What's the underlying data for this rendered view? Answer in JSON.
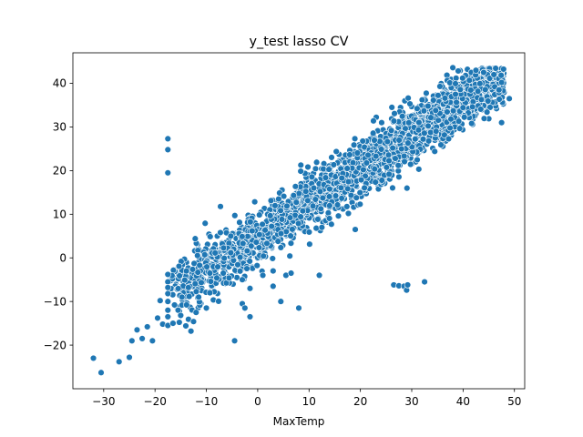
{
  "chart_data": {
    "type": "scatter",
    "title": "y_test lasso CV",
    "xlabel": "MaxTemp",
    "ylabel": "",
    "xlim": [
      -36,
      52
    ],
    "ylim": [
      -30,
      47
    ],
    "x_ticks": [
      -30,
      -20,
      -10,
      0,
      10,
      20,
      30,
      40,
      50
    ],
    "y_ticks": [
      -20,
      -10,
      0,
      10,
      20,
      30,
      40
    ],
    "x_tick_labels": [
      "−30",
      "−20",
      "−10",
      "0",
      "10",
      "20",
      "30",
      "40",
      "50"
    ],
    "y_tick_labels": [
      "−20",
      "−10",
      "0",
      "10",
      "20",
      "30",
      "40"
    ],
    "grid": false,
    "legend": "none",
    "color": "#1f77b4",
    "main_trend": {
      "x_range": [
        -17,
        48
      ],
      "slope": 0.77,
      "intercept": 5.0,
      "spread": 4.5,
      "n_points": 2600
    },
    "points": [
      {
        "x": -32,
        "y": -23
      },
      {
        "x": -30.5,
        "y": -26.3
      },
      {
        "x": -27,
        "y": -23.8
      },
      {
        "x": -25,
        "y": -22.8
      },
      {
        "x": -24.5,
        "y": -19
      },
      {
        "x": -23.5,
        "y": -16.5
      },
      {
        "x": -22.5,
        "y": -18.5
      },
      {
        "x": -21.5,
        "y": -15.8
      },
      {
        "x": -20.5,
        "y": -19
      },
      {
        "x": -19.5,
        "y": -13.8
      },
      {
        "x": -19,
        "y": -9.8
      },
      {
        "x": -18.5,
        "y": -15.2
      },
      {
        "x": -17.5,
        "y": 27.3
      },
      {
        "x": -17.5,
        "y": 24.8
      },
      {
        "x": -17.5,
        "y": 19.5
      },
      {
        "x": -17.5,
        "y": -3.8
      },
      {
        "x": -17.5,
        "y": -5.5
      },
      {
        "x": -17.5,
        "y": -6.8
      },
      {
        "x": -17.5,
        "y": -8.2
      },
      {
        "x": -17.5,
        "y": -10
      },
      {
        "x": -17.5,
        "y": -12
      },
      {
        "x": -17.5,
        "y": -13.5
      },
      {
        "x": -17.5,
        "y": -15.5
      },
      {
        "x": -16.5,
        "y": -15
      },
      {
        "x": -16.2,
        "y": -10.8
      },
      {
        "x": -15.5,
        "y": -12
      },
      {
        "x": -15,
        "y": -13.2
      },
      {
        "x": -14,
        "y": -15.6
      },
      {
        "x": -13.5,
        "y": -6.8
      },
      {
        "x": -13,
        "y": -16.8
      },
      {
        "x": -12.5,
        "y": -14.6
      },
      {
        "x": -12,
        "y": -12.5
      },
      {
        "x": -11.5,
        "y": -9
      },
      {
        "x": -10,
        "y": -11.5
      },
      {
        "x": -4.5,
        "y": -19
      },
      {
        "x": -3,
        "y": -10.5
      },
      {
        "x": -3,
        "y": -5
      },
      {
        "x": -2.5,
        "y": -11.5
      },
      {
        "x": -1.5,
        "y": -13.5
      },
      {
        "x": -1.5,
        "y": -7
      },
      {
        "x": 1,
        "y": -4
      },
      {
        "x": 3,
        "y": -6.5
      },
      {
        "x": 3,
        "y": -3
      },
      {
        "x": 4.5,
        "y": -10
      },
      {
        "x": 5.5,
        "y": -4
      },
      {
        "x": 6.5,
        "y": -3.5
      },
      {
        "x": 8,
        "y": -11.5
      },
      {
        "x": 12,
        "y": -4
      },
      {
        "x": 19,
        "y": 6.5
      },
      {
        "x": 26.5,
        "y": -6.2
      },
      {
        "x": 27.5,
        "y": -6.4
      },
      {
        "x": 28.5,
        "y": -6.5
      },
      {
        "x": 29,
        "y": -7.4
      },
      {
        "x": 29.2,
        "y": -6.2
      },
      {
        "x": 32.5,
        "y": -5.5
      },
      {
        "x": 38,
        "y": 43.6
      },
      {
        "x": 42.5,
        "y": 43
      },
      {
        "x": 44,
        "y": 42.5
      },
      {
        "x": 46,
        "y": 42
      },
      {
        "x": 47.5,
        "y": 40.2
      },
      {
        "x": 47.5,
        "y": 31
      },
      {
        "x": 49,
        "y": 36.5
      },
      {
        "x": 47,
        "y": 38.5
      }
    ]
  }
}
